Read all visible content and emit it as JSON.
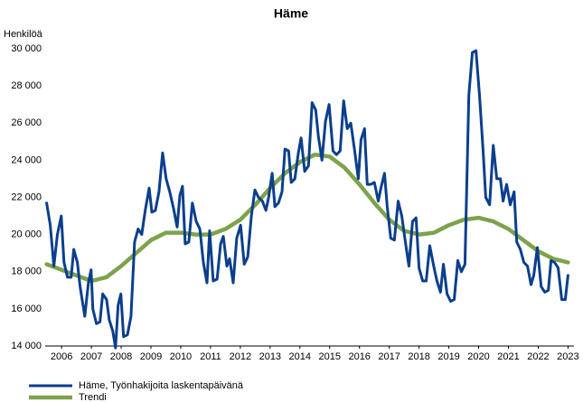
{
  "chart_data": {
    "type": "line",
    "title": "Häme",
    "y_label": "Henkilöä",
    "xlim": [
      2005.95,
      2023.7
    ],
    "xticks": [
      {
        "value": 2006.5,
        "label": "2006"
      },
      {
        "value": 2007.5,
        "label": "2007"
      },
      {
        "value": 2008.5,
        "label": "2008"
      },
      {
        "value": 2009.5,
        "label": "2009"
      },
      {
        "value": 2010.5,
        "label": "2010"
      },
      {
        "value": 2011.5,
        "label": "2011"
      },
      {
        "value": 2012.5,
        "label": "2012"
      },
      {
        "value": 2013.5,
        "label": "2013"
      },
      {
        "value": 2014.5,
        "label": "2014"
      },
      {
        "value": 2015.5,
        "label": "2015"
      },
      {
        "value": 2016.5,
        "label": "2016"
      },
      {
        "value": 2017.5,
        "label": "2017"
      },
      {
        "value": 2018.5,
        "label": "2018"
      },
      {
        "value": 2019.5,
        "label": "2019"
      },
      {
        "value": 2020.5,
        "label": "2020"
      },
      {
        "value": 2021.5,
        "label": "2021"
      },
      {
        "value": 2022.5,
        "label": "2022"
      },
      {
        "value": 2023.5,
        "label": "2023"
      }
    ],
    "ylim": [
      14000,
      30000
    ],
    "yticks": [
      {
        "value": 14000,
        "label": "14 000"
      },
      {
        "value": 16000,
        "label": "16 000"
      },
      {
        "value": 18000,
        "label": "18 000"
      },
      {
        "value": 20000,
        "label": "20 000"
      },
      {
        "value": 22000,
        "label": "22 000"
      },
      {
        "value": 24000,
        "label": "24 000"
      },
      {
        "value": 26000,
        "label": "26 000"
      },
      {
        "value": 28000,
        "label": "28 000"
      },
      {
        "value": 30000,
        "label": "30 000"
      }
    ],
    "grid": false,
    "legend": "bottom",
    "series": [
      {
        "name": "Häme, Työnhakijoita laskentapäivänä",
        "color": "#0b3f8c",
        "width": 3,
        "x": [
          2006.0,
          2006.12,
          2006.24,
          2006.36,
          2006.49,
          2006.58,
          2006.7,
          2006.82,
          2006.91,
          2007.03,
          2007.12,
          2007.28,
          2007.4,
          2007.49,
          2007.55,
          2007.67,
          2007.79,
          2007.88,
          2008.01,
          2008.1,
          2008.22,
          2008.31,
          2008.4,
          2008.49,
          2008.58,
          2008.71,
          2008.83,
          2008.95,
          2009.07,
          2009.19,
          2009.31,
          2009.44,
          2009.53,
          2009.65,
          2009.77,
          2009.89,
          2010.01,
          2010.13,
          2010.26,
          2010.38,
          2010.47,
          2010.56,
          2010.65,
          2010.77,
          2010.89,
          2011.02,
          2011.14,
          2011.26,
          2011.38,
          2011.47,
          2011.59,
          2011.72,
          2011.84,
          2011.93,
          2012.05,
          2012.14,
          2012.26,
          2012.38,
          2012.51,
          2012.63,
          2012.75,
          2012.87,
          2012.99,
          2013.11,
          2013.24,
          2013.36,
          2013.45,
          2013.57,
          2013.66,
          2013.78,
          2013.9,
          2014.0,
          2014.12,
          2014.21,
          2014.33,
          2014.45,
          2014.54,
          2014.66,
          2014.79,
          2014.91,
          2015.03,
          2015.12,
          2015.24,
          2015.36,
          2015.48,
          2015.61,
          2015.73,
          2015.85,
          2015.97,
          2016.09,
          2016.21,
          2016.34,
          2016.46,
          2016.55,
          2016.67,
          2016.76,
          2016.88,
          2017.0,
          2017.13,
          2017.22,
          2017.34,
          2017.43,
          2017.55,
          2017.67,
          2017.8,
          2017.92,
          2018.04,
          2018.16,
          2018.28,
          2018.4,
          2018.5,
          2018.62,
          2018.74,
          2018.86,
          2018.98,
          2019.1,
          2019.22,
          2019.32,
          2019.44,
          2019.56,
          2019.68,
          2019.8,
          2019.92,
          2020.04,
          2020.17,
          2020.29,
          2020.41,
          2020.53,
          2020.65,
          2020.74,
          2020.87,
          2020.99,
          2021.11,
          2021.23,
          2021.32,
          2021.44,
          2021.56,
          2021.69,
          2021.78,
          2021.9,
          2022.02,
          2022.14,
          2022.26,
          2022.35,
          2022.47,
          2022.6,
          2022.72,
          2022.84,
          2022.93,
          2023.05,
          2023.17,
          2023.29,
          2023.41,
          2023.5
        ],
        "values": [
          21700,
          20500,
          18300,
          20000,
          21000,
          18500,
          17700,
          17700,
          19200,
          18500,
          17200,
          15600,
          17400,
          18100,
          16000,
          15200,
          15300,
          16800,
          16500,
          15400,
          14800,
          13900,
          16200,
          16800,
          14500,
          14600,
          15600,
          19600,
          20300,
          20000,
          21300,
          22500,
          21200,
          21300,
          22300,
          24400,
          23000,
          22300,
          21400,
          20400,
          22100,
          22600,
          19500,
          19600,
          21700,
          20700,
          20300,
          18500,
          17400,
          20200,
          17500,
          17600,
          19500,
          19900,
          18300,
          18700,
          17400,
          19800,
          20500,
          18400,
          18800,
          21000,
          22400,
          22000,
          21800,
          21300,
          22000,
          23300,
          21500,
          21700,
          22300,
          24600,
          24500,
          22800,
          23000,
          24400,
          25200,
          23400,
          23700,
          27100,
          26700,
          25300,
          24000,
          26100,
          27000,
          24500,
          24300,
          24500,
          27200,
          25700,
          26000,
          24500,
          23000,
          25100,
          25700,
          22700,
          22700,
          22800,
          21800,
          22500,
          23300,
          21500,
          19800,
          19700,
          21800,
          21000,
          19600,
          18300,
          20700,
          20900,
          18200,
          17500,
          17500,
          19400,
          18400,
          17500,
          16900,
          18400,
          16800,
          16400,
          16500,
          18600,
          18000,
          18400,
          27500,
          29800,
          29900,
          27500,
          24500,
          22000,
          21600,
          24800,
          23000,
          23000,
          21800,
          22700,
          21600,
          22300,
          19600,
          19200,
          18500,
          18300,
          17300,
          17800,
          19300,
          17200,
          16900,
          17000,
          18600,
          18500,
          18200,
          16500,
          16500,
          17800
        ]
      },
      {
        "name": "Trendi",
        "color": "#7da24c",
        "width": 4.5,
        "x": [
          2006.0,
          2006.5,
          2007.0,
          2007.5,
          2008.0,
          2008.5,
          2009.0,
          2009.5,
          2010.0,
          2010.5,
          2011.0,
          2011.5,
          2012.0,
          2012.5,
          2013.0,
          2013.5,
          2014.0,
          2014.5,
          2015.0,
          2015.5,
          2016.0,
          2016.5,
          2017.0,
          2017.5,
          2018.0,
          2018.5,
          2019.0,
          2019.5,
          2020.0,
          2020.5,
          2021.0,
          2021.5,
          2022.0,
          2022.5,
          2023.0,
          2023.5
        ],
        "values": [
          18400,
          18100,
          17800,
          17500,
          17700,
          18300,
          19000,
          19700,
          20100,
          20100,
          20000,
          20000,
          20300,
          20800,
          21600,
          22500,
          23300,
          23900,
          24300,
          24200,
          23600,
          22700,
          21700,
          20800,
          20200,
          20000,
          20100,
          20500,
          20800,
          20900,
          20700,
          20300,
          19700,
          19100,
          18700,
          18500
        ]
      }
    ]
  }
}
